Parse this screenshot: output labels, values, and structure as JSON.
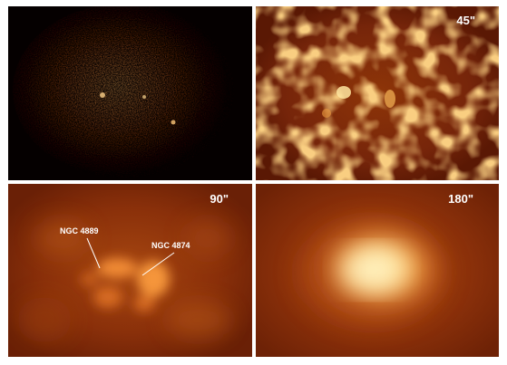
{
  "panels": [
    {
      "id": "raw",
      "scale_label": ""
    },
    {
      "id": "smoothed-45",
      "scale_label": "45\""
    },
    {
      "id": "smoothed-90",
      "scale_label": "90\""
    },
    {
      "id": "smoothed-180",
      "scale_label": "180\""
    }
  ],
  "annotations": {
    "ngc4889": "NGC 4889",
    "ngc4874": "NGC 4874"
  },
  "colors": {
    "background_dark": "#000000",
    "heat_dark": "#6a1a02",
    "heat_mid": "#b4540e",
    "heat_bright": "#f0a042",
    "heat_peak": "#fff4c8",
    "label": "#ffffff"
  }
}
